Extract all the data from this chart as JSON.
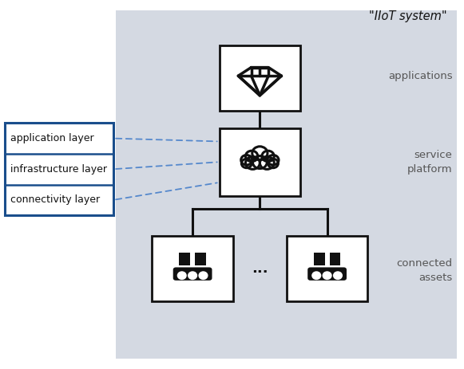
{
  "bg_color": "#d4d9e2",
  "white": "#ffffff",
  "black": "#111111",
  "blue": "#1a4e8c",
  "light_blue": "#5588cc",
  "gray_text": "#555555",
  "title": "\"IIoT system\"",
  "label_applications": "applications",
  "label_service": "service\nplatform",
  "label_assets": "connected\nassets",
  "layer1": "application layer",
  "layer2": "infrastructure layer",
  "layer3": "connectivity layer",
  "dots": "...",
  "figsize": [
    5.81,
    4.63
  ],
  "dpi": 100
}
